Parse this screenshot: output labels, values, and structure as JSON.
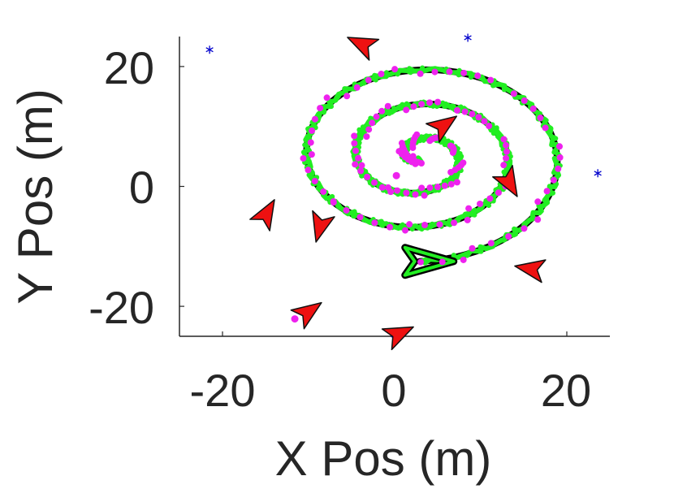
{
  "chart_data": {
    "type": "scatter",
    "title": "",
    "xlabel": "X Pos (m)",
    "ylabel": "Y Pos (m)",
    "xlim": [
      -25,
      25
    ],
    "ylim": [
      -25,
      25
    ],
    "xticks": [
      -20,
      0,
      20
    ],
    "yticks": [
      -20,
      0,
      20
    ],
    "xtick_labels": [
      "-20",
      "0",
      "20"
    ],
    "ytick_labels": [
      "-20",
      "0",
      "20"
    ],
    "grid": false,
    "box": "left-bottom axes only",
    "spiral": {
      "description_of_series": "spiral trajectory ending in arrowhead",
      "r_start": 0.5,
      "r_end": 17.4,
      "turns": 2.95,
      "end_point": [
        2.9,
        -12.5
      ],
      "end_heading_deg": 0,
      "true_path_color": "#000000",
      "estimated_path_color": "#22ee22",
      "measurement_color": "#ee22ee"
    },
    "landmarks": {
      "marker": "asterisk",
      "color": "#0000cc",
      "points": [
        [
          -21.5,
          22.8
        ],
        [
          -3.7,
          23.6
        ],
        [
          8.5,
          24.8
        ],
        [
          23.6,
          2.2
        ],
        [
          13.0,
          0.9
        ],
        [
          15.7,
          -13.8
        ],
        [
          -10.0,
          -21.2
        ],
        [
          0.0,
          -24.8
        ]
      ]
    },
    "sensors": {
      "marker": "triangle",
      "fill": "#ee1111",
      "stroke": "#111111",
      "items": [
        {
          "x": -3.6,
          "y": 23.6,
          "heading_deg": 155
        },
        {
          "x": 5.5,
          "y": 10.0,
          "heading_deg": 35
        },
        {
          "x": 13.2,
          "y": 0.9,
          "heading_deg": -60
        },
        {
          "x": 16.0,
          "y": -13.8,
          "heading_deg": 170
        },
        {
          "x": -8.6,
          "y": -6.4,
          "heading_deg": -105
        },
        {
          "x": -15.0,
          "y": -4.8,
          "heading_deg": 60
        },
        {
          "x": -10.2,
          "y": -21.1,
          "heading_deg": 35
        },
        {
          "x": 0.3,
          "y": -24.7,
          "heading_deg": 25
        }
      ]
    },
    "magenta_extra_points": [
      [
        0.2,
        1.8
      ],
      [
        -11.6,
        -22.1
      ]
    ]
  }
}
